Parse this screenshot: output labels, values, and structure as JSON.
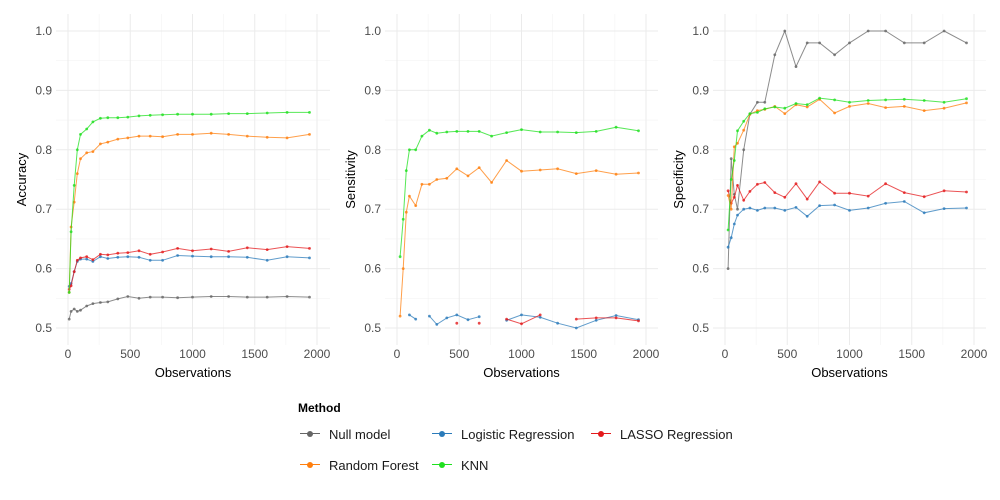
{
  "legend": {
    "title": "Method",
    "items": [
      {
        "label": "Null model",
        "color": "#666666"
      },
      {
        "label": "Logistic Regression",
        "color": "#2b7bba"
      },
      {
        "label": "LASSO Regression",
        "color": "#e41a1c"
      },
      {
        "label": "Random Forest",
        "color": "#ff7f0e"
      },
      {
        "label": "KNN",
        "color": "#1fe01f"
      }
    ]
  },
  "chart_data": [
    {
      "type": "line",
      "xlabel": "Observations",
      "ylabel": "Accuracy",
      "xlim": [
        0,
        2000
      ],
      "ylim": [
        0.5,
        1.0
      ],
      "xticks": [
        0,
        500,
        1000,
        1500,
        2000
      ],
      "yticks": [
        0.5,
        0.6,
        0.7,
        0.8,
        0.9,
        1.0
      ],
      "ytick_labels": [
        "0.5",
        "0.6",
        "0.7",
        "0.8",
        "0.9",
        "1.0"
      ],
      "grid": true,
      "series": [
        {
          "name": "Null model",
          "color": "#666666",
          "x": [
            10,
            25,
            50,
            75,
            100,
            150,
            200,
            260,
            320,
            400,
            480,
            570,
            660,
            760,
            880,
            1000,
            1150,
            1290,
            1440,
            1600,
            1760,
            1940
          ],
          "y": [
            0.515,
            0.528,
            0.532,
            0.528,
            0.53,
            0.537,
            0.541,
            0.543,
            0.544,
            0.549,
            0.553,
            0.55,
            0.552,
            0.552,
            0.551,
            0.552,
            0.553,
            0.553,
            0.552,
            0.552,
            0.553,
            0.552
          ]
        },
        {
          "name": "Logistic Regression",
          "color": "#2b7bba",
          "x": [
            10,
            25,
            50,
            75,
            100,
            150,
            200,
            260,
            320,
            400,
            480,
            570,
            660,
            760,
            880,
            1000,
            1150,
            1290,
            1440,
            1600,
            1760,
            1940
          ],
          "y": [
            0.57,
            0.575,
            0.595,
            0.612,
            0.616,
            0.616,
            0.612,
            0.62,
            0.617,
            0.619,
            0.62,
            0.619,
            0.614,
            0.614,
            0.622,
            0.621,
            0.62,
            0.62,
            0.619,
            0.614,
            0.62,
            0.618
          ]
        },
        {
          "name": "LASSO Regression",
          "color": "#e41a1c",
          "x": [
            10,
            25,
            50,
            75,
            100,
            150,
            200,
            260,
            320,
            400,
            480,
            570,
            660,
            760,
            880,
            1000,
            1150,
            1290,
            1440,
            1600,
            1760,
            1940
          ],
          "y": [
            0.565,
            0.571,
            0.595,
            0.614,
            0.618,
            0.62,
            0.615,
            0.624,
            0.623,
            0.626,
            0.627,
            0.63,
            0.624,
            0.628,
            0.634,
            0.63,
            0.633,
            0.629,
            0.635,
            0.632,
            0.637,
            0.634
          ]
        },
        {
          "name": "Random Forest",
          "color": "#ff7f0e",
          "x": [
            10,
            25,
            50,
            75,
            100,
            150,
            200,
            260,
            320,
            400,
            480,
            570,
            660,
            760,
            880,
            1000,
            1150,
            1290,
            1440,
            1600,
            1760,
            1940
          ],
          "y": [
            0.56,
            0.67,
            0.712,
            0.76,
            0.785,
            0.795,
            0.797,
            0.81,
            0.813,
            0.818,
            0.82,
            0.823,
            0.823,
            0.822,
            0.826,
            0.826,
            0.828,
            0.826,
            0.823,
            0.821,
            0.82,
            0.826
          ]
        },
        {
          "name": "KNN",
          "color": "#1fe01f",
          "x": [
            10,
            25,
            50,
            75,
            100,
            150,
            200,
            260,
            320,
            400,
            480,
            570,
            660,
            760,
            880,
            1000,
            1150,
            1290,
            1440,
            1600,
            1760,
            1940
          ],
          "y": [
            0.56,
            0.662,
            0.74,
            0.8,
            0.826,
            0.835,
            0.847,
            0.853,
            0.854,
            0.854,
            0.855,
            0.857,
            0.858,
            0.859,
            0.86,
            0.86,
            0.86,
            0.861,
            0.861,
            0.862,
            0.863,
            0.863
          ]
        }
      ]
    },
    {
      "type": "line",
      "xlabel": "Observations",
      "ylabel": "Sensitivity",
      "xlim": [
        0,
        2000
      ],
      "ylim": [
        0.5,
        1.0
      ],
      "xticks": [
        0,
        500,
        1000,
        1500,
        2000
      ],
      "yticks": [
        0.5,
        0.6,
        0.7,
        0.8,
        0.9,
        1.0
      ],
      "ytick_labels": [
        "0.5",
        "0.6",
        "0.7",
        "0.8",
        "0.9",
        "1.0"
      ],
      "grid": true,
      "series": [
        {
          "name": "Null model",
          "color": "#666666",
          "x": [],
          "y": []
        },
        {
          "name": "Logistic Regression",
          "color": "#2b7bba",
          "x": [
            100,
            150,
            null,
            260,
            320,
            400,
            480,
            570,
            660,
            null,
            880,
            1000,
            1150,
            1290,
            1440,
            1600,
            1760,
            1940
          ],
          "y": [
            0.522,
            0.515,
            null,
            0.52,
            0.506,
            0.517,
            0.522,
            0.514,
            0.519,
            null,
            0.513,
            0.522,
            0.518,
            0.508,
            0.5,
            0.513,
            0.521,
            0.514
          ]
        },
        {
          "name": "LASSO Regression",
          "color": "#e41a1c",
          "x": [
            480,
            null,
            660,
            null,
            880,
            1000,
            1150,
            null,
            1440,
            1600,
            1760,
            1940
          ],
          "y": [
            0.508,
            null,
            0.508,
            null,
            0.515,
            0.507,
            0.522,
            null,
            0.515,
            0.517,
            0.517,
            0.512
          ]
        },
        {
          "name": "Random Forest",
          "color": "#ff7f0e",
          "x": [
            25,
            50,
            75,
            100,
            150,
            200,
            260,
            320,
            400,
            480,
            570,
            660,
            760,
            880,
            1000,
            1150,
            1290,
            1440,
            1600,
            1760,
            1940
          ],
          "y": [
            0.52,
            0.6,
            0.695,
            0.722,
            0.706,
            0.742,
            0.742,
            0.75,
            0.752,
            0.768,
            0.756,
            0.77,
            0.745,
            0.782,
            0.764,
            0.766,
            0.768,
            0.76,
            0.765,
            0.759,
            0.761
          ]
        },
        {
          "name": "KNN",
          "color": "#1fe01f",
          "x": [
            25,
            50,
            75,
            100,
            150,
            200,
            260,
            320,
            400,
            480,
            570,
            660,
            760,
            880,
            1000,
            1150,
            1290,
            1440,
            1600,
            1760,
            1940
          ],
          "y": [
            0.62,
            0.683,
            0.765,
            0.8,
            0.8,
            0.823,
            0.833,
            0.828,
            0.83,
            0.831,
            0.831,
            0.831,
            0.823,
            0.829,
            0.834,
            0.83,
            0.83,
            0.829,
            0.831,
            0.838,
            0.832
          ]
        }
      ]
    },
    {
      "type": "line",
      "xlabel": "Observations",
      "ylabel": "Specificity",
      "xlim": [
        0,
        2000
      ],
      "ylim": [
        0.5,
        1.0
      ],
      "xticks": [
        0,
        500,
        1000,
        1500,
        2000
      ],
      "yticks": [
        0.5,
        0.6,
        0.7,
        0.8,
        0.9,
        1.0
      ],
      "ytick_labels": [
        "0.5",
        "0.6",
        "0.7",
        "0.8",
        "0.9",
        "1.0"
      ],
      "grid": true,
      "series": [
        {
          "name": "Null model",
          "color": "#666666",
          "x": [
            25,
            50,
            75,
            100,
            150,
            200,
            260,
            320,
            400,
            480,
            570,
            660,
            760,
            880,
            1000,
            1150,
            1290,
            1440,
            1600,
            1760,
            1940
          ],
          "y": [
            0.6,
            0.785,
            0.725,
            0.7,
            0.8,
            0.86,
            0.88,
            0.88,
            0.96,
            1.0,
            0.94,
            0.98,
            0.98,
            0.96,
            0.98,
            1.0,
            1.0,
            0.98,
            0.98,
            1.0,
            0.98
          ]
        },
        {
          "name": "Logistic Regression",
          "color": "#2b7bba",
          "x": [
            25,
            50,
            75,
            100,
            150,
            200,
            260,
            320,
            400,
            480,
            570,
            660,
            760,
            880,
            1000,
            1150,
            1290,
            1440,
            1600,
            1760,
            1940
          ],
          "y": [
            0.636,
            0.652,
            0.675,
            0.69,
            0.7,
            0.702,
            0.698,
            0.702,
            0.702,
            0.698,
            0.703,
            0.688,
            0.706,
            0.707,
            0.698,
            0.702,
            0.71,
            0.713,
            0.694,
            0.701,
            0.702
          ]
        },
        {
          "name": "LASSO Regression",
          "color": "#e41a1c",
          "x": [
            25,
            50,
            75,
            100,
            150,
            200,
            260,
            320,
            400,
            480,
            570,
            660,
            760,
            880,
            1000,
            1150,
            1290,
            1440,
            1600,
            1760,
            1940
          ],
          "y": [
            0.731,
            0.71,
            0.72,
            0.74,
            0.715,
            0.73,
            0.742,
            0.745,
            0.728,
            0.72,
            0.743,
            0.717,
            0.746,
            0.727,
            0.727,
            0.722,
            0.743,
            0.728,
            0.721,
            0.731,
            0.729
          ]
        },
        {
          "name": "Random Forest",
          "color": "#ff7f0e",
          "x": [
            25,
            50,
            75,
            100,
            150,
            200,
            260,
            320,
            400,
            480,
            570,
            660,
            760,
            880,
            1000,
            1150,
            1290,
            1440,
            1600,
            1760,
            1940
          ],
          "y": [
            0.723,
            0.7,
            0.805,
            0.811,
            0.833,
            0.86,
            0.866,
            0.868,
            0.873,
            0.861,
            0.876,
            0.872,
            0.885,
            0.862,
            0.873,
            0.878,
            0.871,
            0.873,
            0.866,
            0.87,
            0.879
          ]
        },
        {
          "name": "KNN",
          "color": "#1fe01f",
          "x": [
            25,
            50,
            75,
            100,
            150,
            200,
            260,
            320,
            400,
            480,
            570,
            660,
            760,
            880,
            1000,
            1150,
            1290,
            1440,
            1600,
            1760,
            1940
          ],
          "y": [
            0.665,
            0.75,
            0.782,
            0.832,
            0.848,
            0.861,
            0.863,
            0.869,
            0.872,
            0.87,
            0.878,
            0.876,
            0.887,
            0.884,
            0.88,
            0.883,
            0.884,
            0.885,
            0.883,
            0.88,
            0.886
          ]
        }
      ]
    }
  ]
}
